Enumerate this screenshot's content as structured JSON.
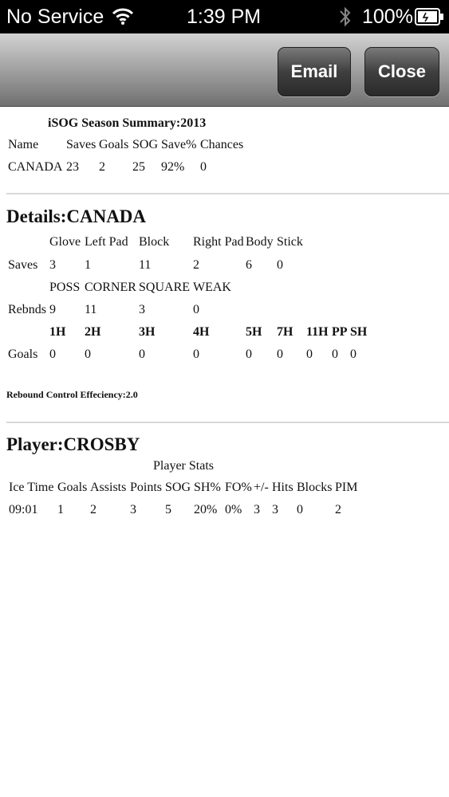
{
  "status_bar": {
    "carrier": "No Service",
    "time": "1:39 PM",
    "battery": "100%"
  },
  "toolbar": {
    "email_label": "Email",
    "close_label": "Close"
  },
  "summary": {
    "title": "iSOG Season Summary:2013",
    "headers": [
      "Name",
      "Saves",
      "Goals",
      "SOG",
      "Save%",
      "Chances"
    ],
    "row": [
      "CANADA",
      "23",
      "2",
      "25",
      "92%",
      "0"
    ]
  },
  "details": {
    "title": "Details:CANADA",
    "saves_headers": [
      "Glove",
      "Left Pad",
      "Block",
      "Right Pad",
      "Body",
      "Stick"
    ],
    "saves_label": "Saves",
    "saves_values": [
      "3",
      "1",
      "11",
      "2",
      "6",
      "0"
    ],
    "rebounds_headers": [
      "POSS",
      "CORNER",
      "SQUARE",
      "WEAK"
    ],
    "rebounds_label": "Rebnds",
    "rebounds_values": [
      "9",
      "11",
      "3",
      "0"
    ],
    "goals_headers": [
      "1H",
      "2H",
      "3H",
      "4H",
      "5H",
      "7H",
      "11H",
      "PP",
      "SH"
    ],
    "goals_label": "Goals",
    "goals_values": [
      "0",
      "0",
      "0",
      "0",
      "0",
      "0",
      "0",
      "0",
      "0"
    ],
    "rebound_efficiency": "Rebound Control Effeciency:2.0"
  },
  "player": {
    "title": "Player:CROSBY",
    "stats_caption": "Player Stats",
    "headers": [
      "Ice Time",
      "Goals",
      "Assists",
      "Points",
      "SOG",
      "SH%",
      "FO%",
      "+/-",
      "Hits",
      "Blocks",
      "PIM"
    ],
    "values": [
      "09:01",
      "1",
      "2",
      "3",
      "5",
      "20%",
      "0%",
      "3",
      "3",
      "0",
      "2"
    ]
  }
}
